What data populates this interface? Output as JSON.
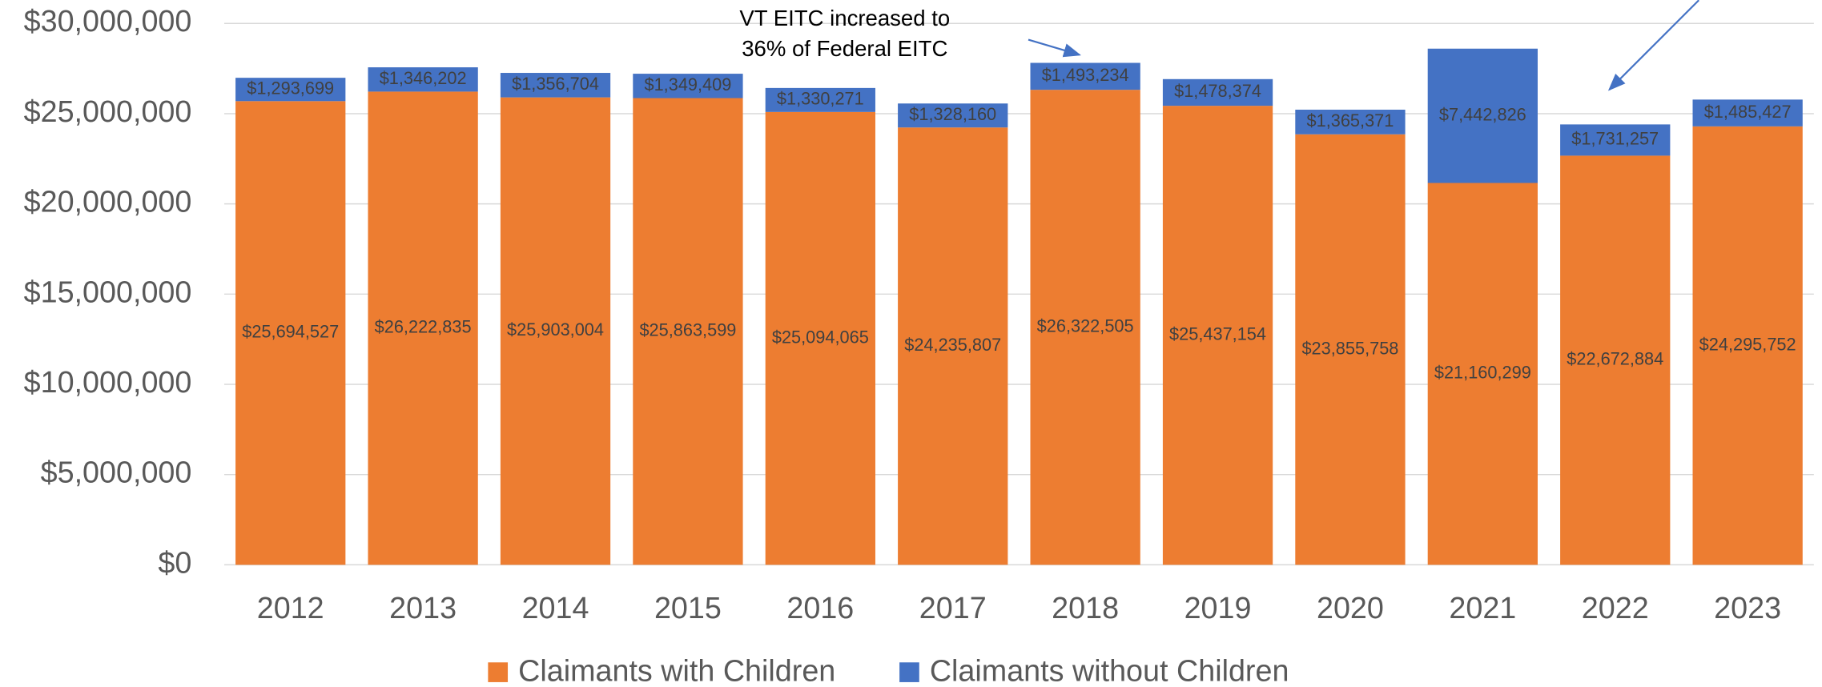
{
  "chart_data": {
    "type": "stacked_bar",
    "annotations": [
      "VT EITC increased to",
      "36% of Federal EITC"
    ],
    "categories": [
      "2012",
      "2013",
      "2014",
      "2015",
      "2016",
      "2017",
      "2018",
      "2019",
      "2020",
      "2021",
      "2022",
      "2023"
    ],
    "series": [
      {
        "name": "Claimants with Children",
        "color": "#ED7D31",
        "values": [
          25694527,
          26222835,
          25903004,
          25863599,
          25094065,
          24235807,
          26322505,
          25437154,
          23855758,
          21160299,
          22672884,
          24295752
        ],
        "value_labels": [
          "$25,694,527",
          "$26,222,835",
          "$25,903,004",
          "$25,863,599",
          "$25,094,065",
          "$24,235,807",
          "$26,322,505",
          "$25,437,154",
          "$23,855,758",
          "$21,160,299",
          "$22,672,884",
          "$24,295,752"
        ]
      },
      {
        "name": "Claimants without Children",
        "color": "#4472C4",
        "values": [
          1293699,
          1346202,
          1356704,
          1349409,
          1330271,
          1328160,
          1493234,
          1478374,
          1365371,
          7442826,
          1731257,
          1485427
        ],
        "value_labels": [
          "$1,293,699",
          "$1,346,202",
          "$1,356,704",
          "$1,349,409",
          "$1,330,271",
          "$1,328,160",
          "$1,493,234",
          "$1,478,374",
          "$1,365,371",
          "$7,442,826",
          "$1,731,257",
          "$1,485,427"
        ]
      }
    ],
    "ylim": [
      0,
      30000000
    ],
    "yticks": [
      {
        "value": 0,
        "label": "$0"
      },
      {
        "value": 5000000,
        "label": "$5,000,000"
      },
      {
        "value": 10000000,
        "label": "$10,000,000"
      },
      {
        "value": 15000000,
        "label": "$15,000,000"
      },
      {
        "value": 20000000,
        "label": "$20,000,000"
      },
      {
        "value": 25000000,
        "label": "$25,000,000"
      },
      {
        "value": 30000000,
        "label": "$30,000,000"
      }
    ],
    "grid": true,
    "legend": "bottom"
  }
}
